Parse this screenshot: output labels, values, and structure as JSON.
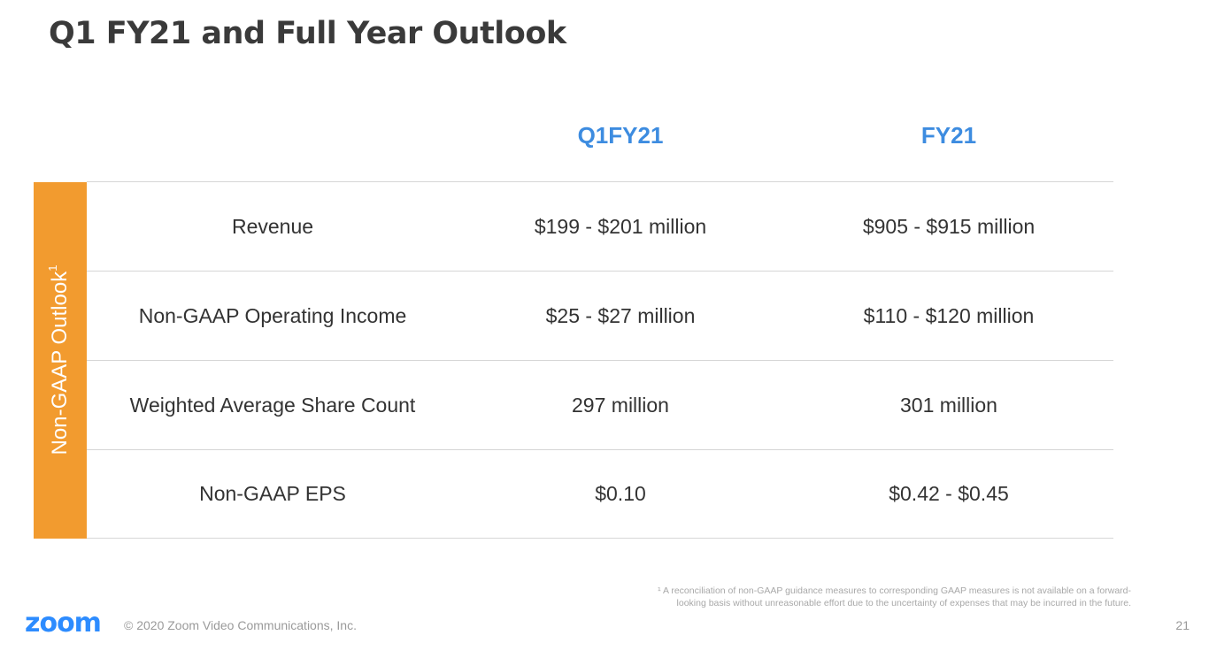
{
  "slide": {
    "title": "Q1 FY21 and Full Year Outlook"
  },
  "table": {
    "columns": [
      "Q1FY21",
      "FY21"
    ],
    "side_label": "Non-GAAP Outlook",
    "side_label_sup": "1",
    "rows": [
      {
        "label": "Revenue",
        "q1": "$199 - $201 million",
        "fy": "$905 - $915 million"
      },
      {
        "label": "Non-GAAP Operating Income",
        "q1": "$25 - $27 million",
        "fy": "$110 - $120 million"
      },
      {
        "label": "Weighted Average Share Count",
        "q1": "297 million",
        "fy": "301 million"
      },
      {
        "label": "Non-GAAP EPS",
        "q1": "$0.10",
        "fy": "$0.42 - $0.45"
      }
    ]
  },
  "footnote": {
    "line1": "¹ A reconciliation of non-GAAP guidance measures to corresponding GAAP measures is not available on a forward-",
    "line2": "looking basis without unreasonable effort due to the uncertainty of expenses that may be incurred in the future."
  },
  "footer": {
    "logo": "zoom",
    "copyright": "© 2020 Zoom Video Communications, Inc.",
    "page_number": "21"
  },
  "colors": {
    "accent_blue": "#3d8ce0",
    "side_bar_orange": "#f29b2f",
    "logo_blue": "#2d8cff"
  }
}
